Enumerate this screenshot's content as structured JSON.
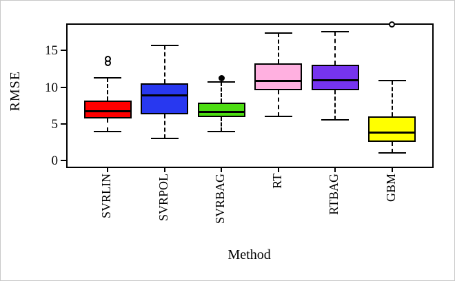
{
  "chart_data": {
    "type": "boxplot",
    "orientation": "vertical",
    "title": "",
    "xlabel": "Method",
    "ylabel": "RMSE",
    "yticks": [
      0,
      5,
      10,
      15
    ],
    "ylim": [
      -1.0,
      18.7
    ],
    "grid": false,
    "legend": "none",
    "categories": [
      "SVRLIN",
      "SVRPOL",
      "SVRBAG",
      "RT",
      "RTBAG",
      "GBM"
    ],
    "series": [
      {
        "name": "SVRLIN",
        "color": "#ff0000",
        "whisker_low": 4.0,
        "q1": 5.8,
        "median": 6.7,
        "q3": 8.2,
        "whisker_high": 11.3,
        "outliers": [
          {
            "value": 13.3,
            "style": "open"
          },
          {
            "value": 13.85,
            "style": "open"
          }
        ]
      },
      {
        "name": "SVRPOL",
        "color": "#2838f0",
        "whisker_low": 3.0,
        "q1": 6.3,
        "median": 8.9,
        "q3": 10.5,
        "whisker_high": 15.7,
        "outliers": []
      },
      {
        "name": "SVRBAG",
        "color": "#4ddd12",
        "whisker_low": 4.0,
        "q1": 5.9,
        "median": 6.6,
        "q3": 7.9,
        "whisker_high": 10.7,
        "outliers": [
          {
            "value": 11.2,
            "style": "filled"
          }
        ]
      },
      {
        "name": "RT",
        "color": "#ffb0e0",
        "whisker_low": 6.0,
        "q1": 9.6,
        "median": 10.9,
        "q3": 13.3,
        "whisker_high": 17.4,
        "outliers": []
      },
      {
        "name": "RTBAG",
        "color": "#7634ee",
        "whisker_low": 5.6,
        "q1": 9.6,
        "median": 11.0,
        "q3": 13.1,
        "whisker_high": 17.6,
        "outliers": []
      },
      {
        "name": "GBM",
        "color": "#ffff00",
        "whisker_low": 1.1,
        "q1": 2.6,
        "median": 3.8,
        "q3": 6.0,
        "whisker_high": 10.9,
        "outliers": [
          {
            "value": 18.6,
            "style": "open"
          }
        ]
      }
    ]
  }
}
